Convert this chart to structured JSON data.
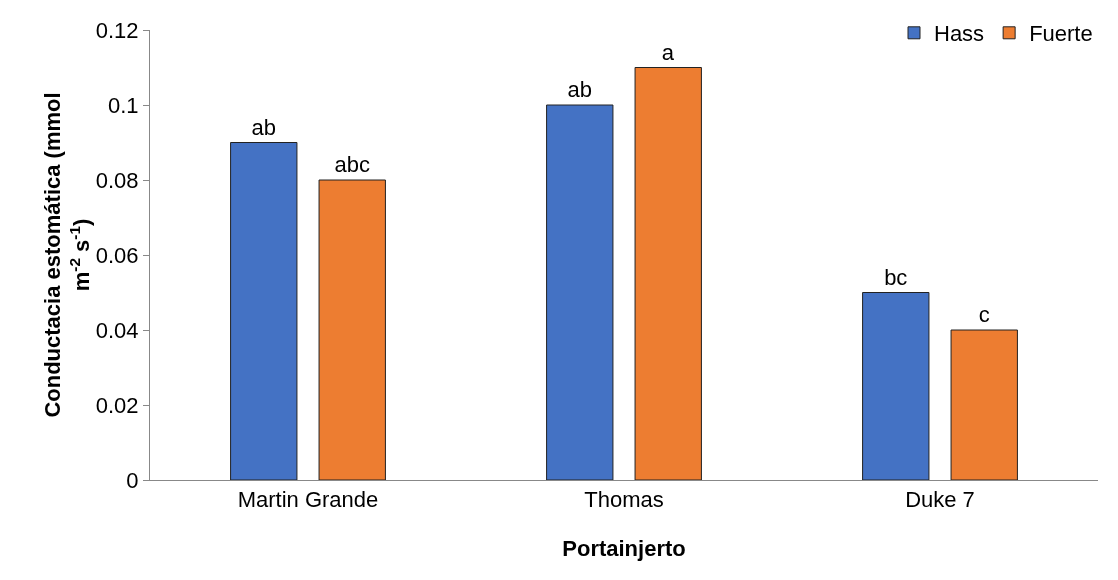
{
  "chart_data": {
    "type": "bar",
    "xlabel": "Portainjerto",
    "ylabel": "Conductacia estomática (mmol m$^{-2}$ s$^{-1}$)",
    "categories": [
      "Martin Grande",
      "Thomas",
      "Duke 7"
    ],
    "series": [
      {
        "name": "Hass",
        "color": "#4472c4",
        "values": [
          0.09,
          0.1,
          0.05
        ],
        "value_labels": [
          "ab",
          "ab",
          "bc"
        ]
      },
      {
        "name": "Fuerte",
        "color": "#ed7d31",
        "values": [
          0.08,
          0.11,
          0.04
        ],
        "value_labels": [
          "abc",
          "a",
          "c"
        ]
      }
    ],
    "ylim": [
      0,
      0.12
    ],
    "yticks": [
      0,
      0.02,
      0.04,
      0.06,
      0.08,
      0.1,
      0.12
    ],
    "grid": false,
    "legend": "top right"
  }
}
